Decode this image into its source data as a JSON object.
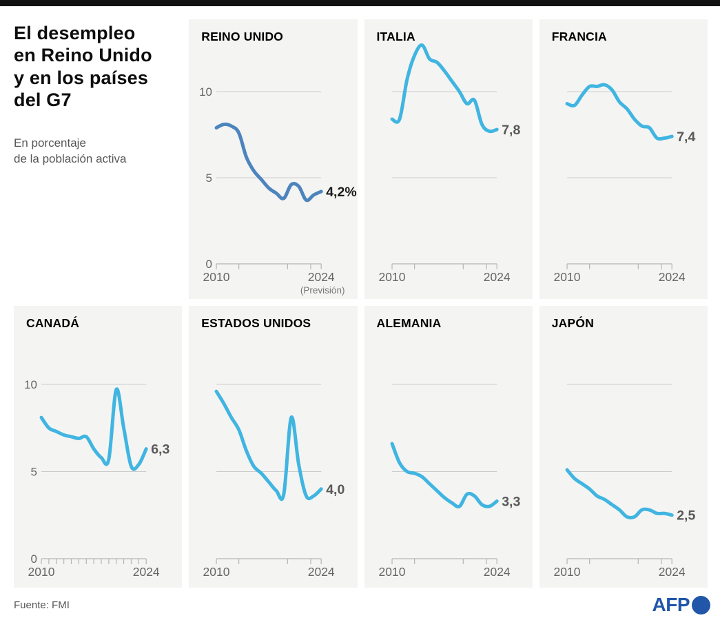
{
  "page": {
    "title": "El desempleo\nen Reino Unido\ny en los países\ndel G7",
    "subtitle": "En porcentaje\nde la población activa",
    "source": "Fuente: FMI",
    "afp_logo_text": "AFP"
  },
  "colors": {
    "top_bar": "#111111",
    "panel_bg": "#f4f4f3",
    "line_dark_blue": "#4d84bd",
    "line_cyan": "#41b5e1",
    "gridline": "#cccccc",
    "axis": "#b5b5b5",
    "axis_label": "#666666",
    "value_label_gray": "#595959",
    "value_label_black": "#1a1a1a",
    "afp_blue": "#2156a8"
  },
  "chart_config": {
    "years": [
      2010,
      2011,
      2012,
      2013,
      2014,
      2015,
      2016,
      2017,
      2018,
      2019,
      2020,
      2021,
      2022,
      2023,
      2024
    ],
    "x_range": [
      2010,
      2024
    ],
    "ylim": [
      0,
      13.2
    ],
    "gridline_values": [
      10,
      5
    ],
    "x_axis_labels": [
      "2010",
      "2024"
    ],
    "sparse_tick_years": [
      2010,
      2013,
      2019.5,
      2022.6,
      2024
    ],
    "yearly_tick_years": [
      2010,
      2011,
      2012,
      2013,
      2014,
      2015,
      2016,
      2017,
      2018,
      2019,
      2020,
      2021,
      2022,
      2023,
      2024
    ],
    "grid_on": true,
    "legend": "none"
  },
  "chart_data": [
    {
      "type": "line",
      "title": "REINO UNIDO",
      "values": [
        7.9,
        8.1,
        8.0,
        7.6,
        6.2,
        5.4,
        4.9,
        4.4,
        4.1,
        3.8,
        4.6,
        4.5,
        3.7,
        4.0,
        4.2
      ],
      "end_label": "4,2%",
      "end_label_color": "#1a1a1a",
      "line_color": "#4d84bd",
      "y_axis_labels": [
        "10",
        "5",
        "0"
      ],
      "x_note": "(Previsión)",
      "ticks": "sparse",
      "row": "top"
    },
    {
      "type": "line",
      "title": "ITALIA",
      "values": [
        8.4,
        8.4,
        10.7,
        12.1,
        12.7,
        11.9,
        11.7,
        11.2,
        10.6,
        10.0,
        9.3,
        9.5,
        8.1,
        7.7,
        7.8
      ],
      "end_label": "7,8",
      "end_label_color": "#595959",
      "line_color": "#41b5e1",
      "y_axis_labels": null,
      "x_note": null,
      "ticks": "sparse",
      "row": "top"
    },
    {
      "type": "line",
      "title": "FRANCIA",
      "values": [
        9.3,
        9.2,
        9.8,
        10.3,
        10.3,
        10.4,
        10.1,
        9.4,
        9.0,
        8.4,
        8.0,
        7.9,
        7.3,
        7.3,
        7.4
      ],
      "end_label": "7,4",
      "end_label_color": "#595959",
      "line_color": "#41b5e1",
      "y_axis_labels": null,
      "x_note": null,
      "ticks": "sparse",
      "row": "top"
    },
    {
      "type": "line",
      "title": "CANADÁ",
      "values": [
        8.1,
        7.5,
        7.3,
        7.1,
        7.0,
        6.9,
        7.0,
        6.3,
        5.8,
        5.7,
        9.7,
        7.5,
        5.3,
        5.4,
        6.3
      ],
      "end_label": "6,3",
      "end_label_color": "#595959",
      "line_color": "#41b5e1",
      "y_axis_labels": [
        "10",
        "5",
        "0"
      ],
      "x_note": null,
      "ticks": "yearly",
      "row": "bottom"
    },
    {
      "type": "line",
      "title": "ESTADOS UNIDOS",
      "values": [
        9.6,
        8.9,
        8.1,
        7.4,
        6.2,
        5.3,
        4.9,
        4.4,
        3.9,
        3.7,
        8.1,
        5.4,
        3.6,
        3.6,
        4.0
      ],
      "end_label": "4,0",
      "end_label_color": "#595959",
      "line_color": "#41b5e1",
      "y_axis_labels": null,
      "x_note": null,
      "ticks": "sparse",
      "row": "bottom"
    },
    {
      "type": "line",
      "title": "ALEMANIA",
      "values": [
        6.6,
        5.5,
        5.0,
        4.9,
        4.7,
        4.3,
        3.9,
        3.5,
        3.2,
        3.0,
        3.7,
        3.6,
        3.1,
        3.0,
        3.3
      ],
      "end_label": "3,3",
      "end_label_color": "#595959",
      "line_color": "#41b5e1",
      "y_axis_labels": null,
      "x_note": null,
      "ticks": "sparse",
      "row": "bottom"
    },
    {
      "type": "line",
      "title": "JAPÓN",
      "values": [
        5.1,
        4.6,
        4.3,
        4.0,
        3.6,
        3.4,
        3.1,
        2.8,
        2.4,
        2.4,
        2.8,
        2.8,
        2.6,
        2.6,
        2.5
      ],
      "end_label": "2,5",
      "end_label_color": "#595959",
      "line_color": "#41b5e1",
      "y_axis_labels": null,
      "x_note": null,
      "ticks": "sparse",
      "row": "bottom"
    }
  ]
}
